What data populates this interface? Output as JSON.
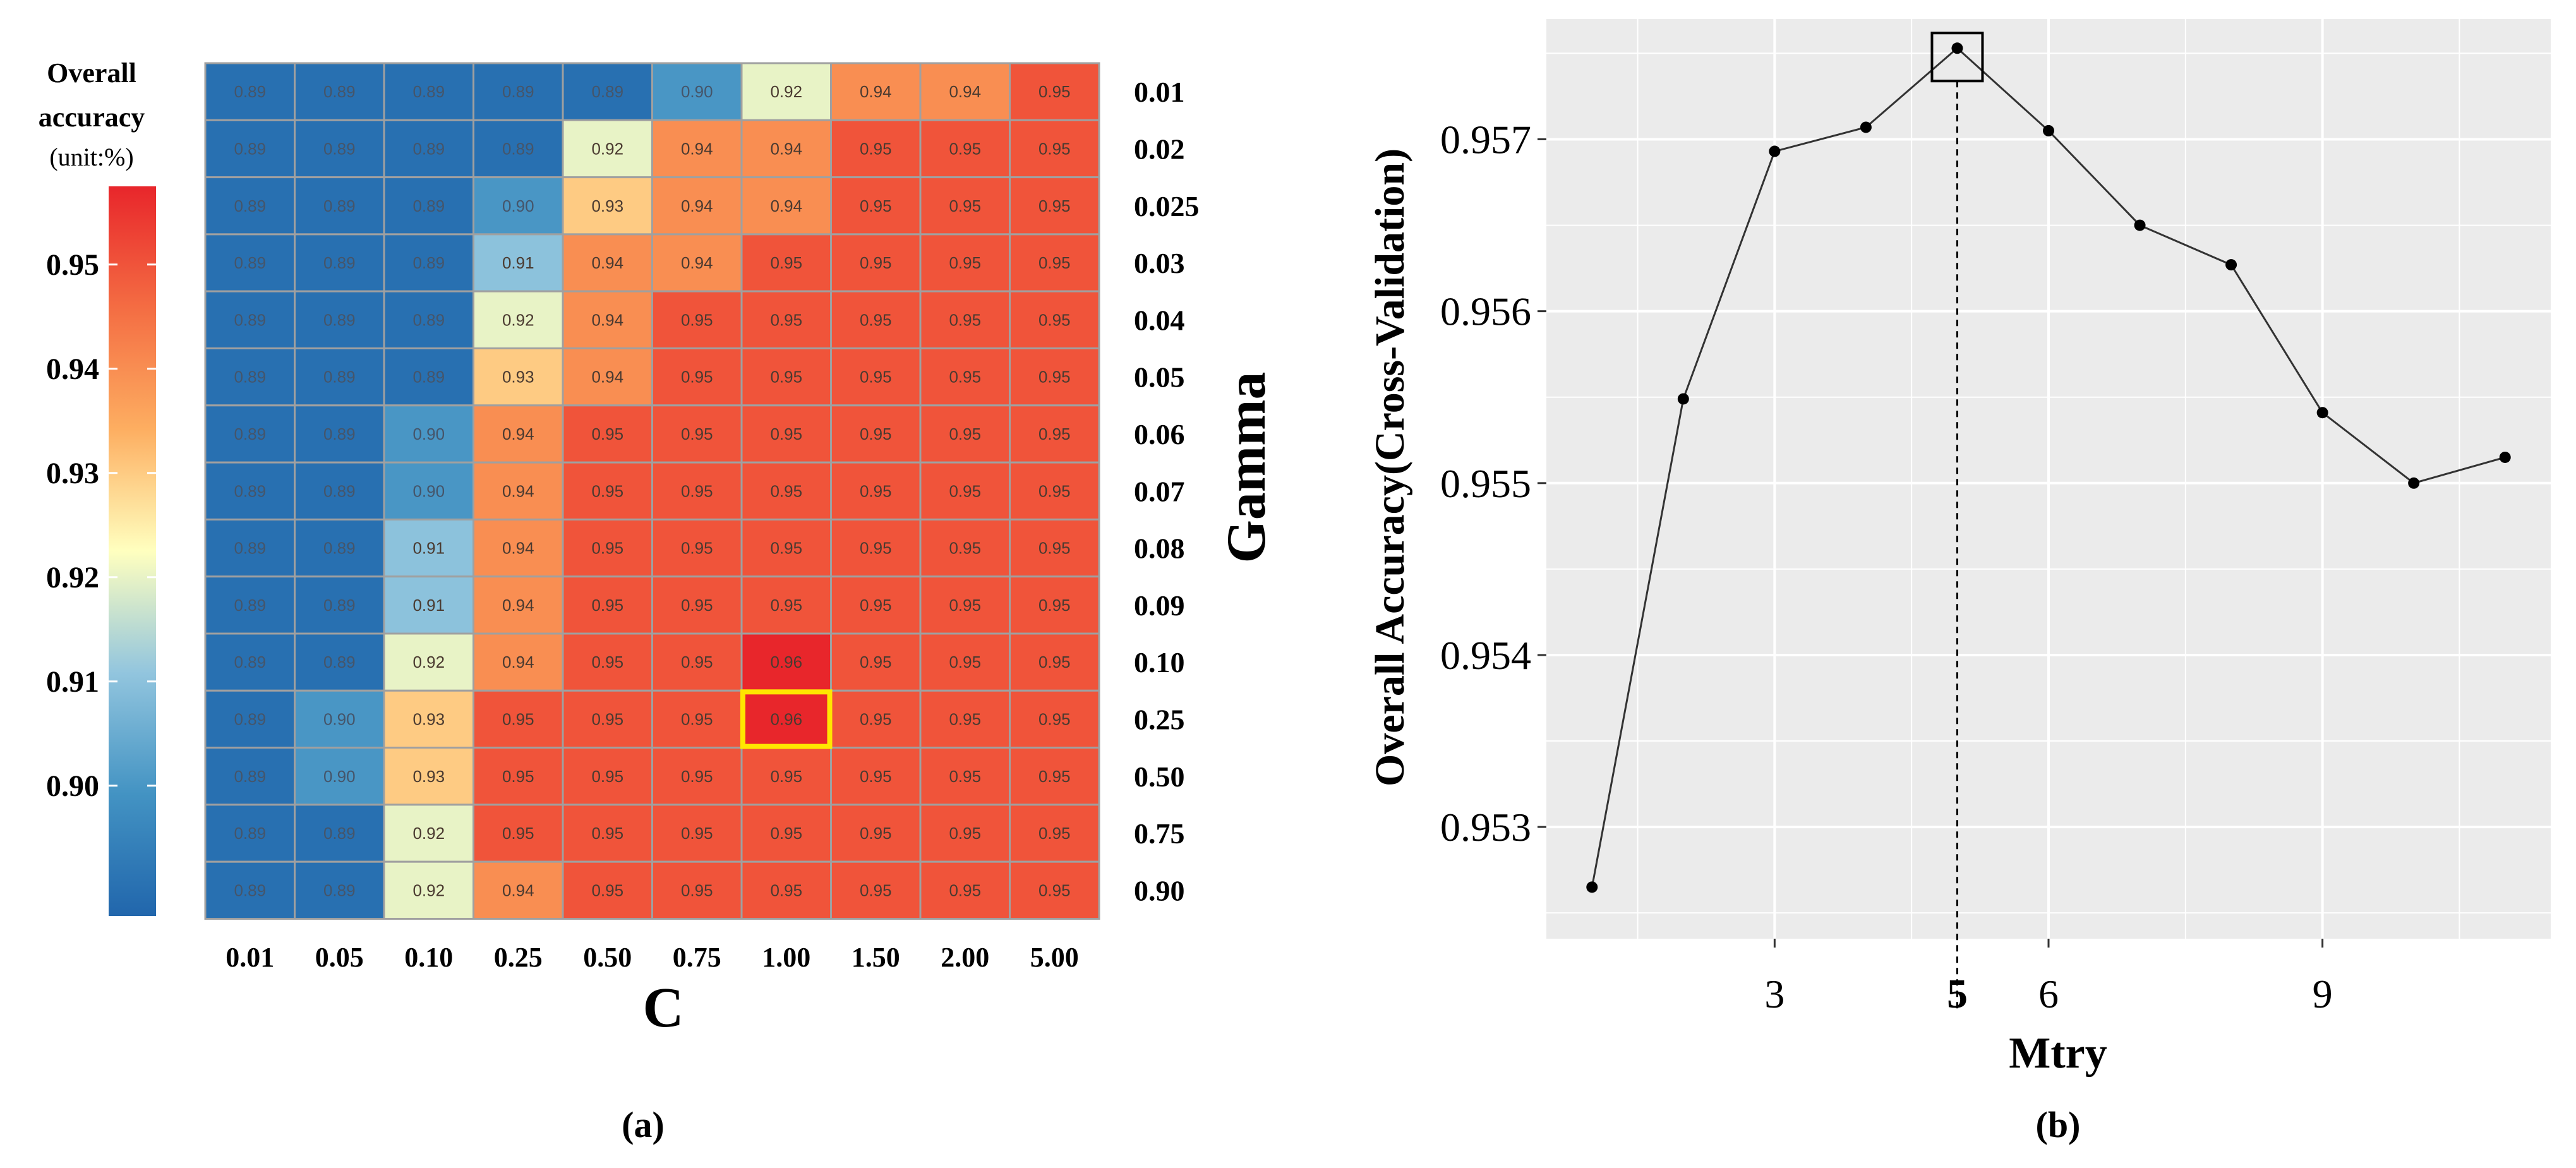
{
  "chart_data": [
    {
      "type": "heatmap",
      "panel_label": "(a)",
      "xlabel": "C",
      "ylabel": "Gamma",
      "x_categories": [
        "0.01",
        "0.05",
        "0.10",
        "0.25",
        "0.50",
        "0.75",
        "1.00",
        "1.50",
        "2.00",
        "5.00"
      ],
      "y_categories": [
        "0.01",
        "0.02",
        "0.025",
        "0.03",
        "0.04",
        "0.05",
        "0.06",
        "0.07",
        "0.08",
        "0.09",
        "0.10",
        "0.25",
        "0.50",
        "0.75",
        "0.90"
      ],
      "values": [
        [
          0.89,
          0.89,
          0.89,
          0.89,
          0.89,
          0.9,
          0.92,
          0.94,
          0.94,
          0.95
        ],
        [
          0.89,
          0.89,
          0.89,
          0.89,
          0.92,
          0.94,
          0.94,
          0.95,
          0.95,
          0.95
        ],
        [
          0.89,
          0.89,
          0.89,
          0.9,
          0.93,
          0.94,
          0.94,
          0.95,
          0.95,
          0.95
        ],
        [
          0.89,
          0.89,
          0.89,
          0.91,
          0.94,
          0.94,
          0.95,
          0.95,
          0.95,
          0.95
        ],
        [
          0.89,
          0.89,
          0.89,
          0.92,
          0.94,
          0.95,
          0.95,
          0.95,
          0.95,
          0.95
        ],
        [
          0.89,
          0.89,
          0.89,
          0.93,
          0.94,
          0.95,
          0.95,
          0.95,
          0.95,
          0.95
        ],
        [
          0.89,
          0.89,
          0.9,
          0.94,
          0.95,
          0.95,
          0.95,
          0.95,
          0.95,
          0.95
        ],
        [
          0.89,
          0.89,
          0.9,
          0.94,
          0.95,
          0.95,
          0.95,
          0.95,
          0.95,
          0.95
        ],
        [
          0.89,
          0.89,
          0.91,
          0.94,
          0.95,
          0.95,
          0.95,
          0.95,
          0.95,
          0.95
        ],
        [
          0.89,
          0.89,
          0.91,
          0.94,
          0.95,
          0.95,
          0.95,
          0.95,
          0.95,
          0.95
        ],
        [
          0.89,
          0.89,
          0.92,
          0.94,
          0.95,
          0.95,
          0.96,
          0.95,
          0.95,
          0.95
        ],
        [
          0.89,
          0.9,
          0.93,
          0.95,
          0.95,
          0.95,
          0.96,
          0.95,
          0.95,
          0.95
        ],
        [
          0.89,
          0.9,
          0.93,
          0.95,
          0.95,
          0.95,
          0.95,
          0.95,
          0.95,
          0.95
        ],
        [
          0.89,
          0.89,
          0.92,
          0.95,
          0.95,
          0.95,
          0.95,
          0.95,
          0.95,
          0.95
        ],
        [
          0.89,
          0.89,
          0.92,
          0.94,
          0.95,
          0.95,
          0.95,
          0.95,
          0.95,
          0.95
        ]
      ],
      "color_scale_values": [
        0.8875,
        0.8975,
        0.9075,
        0.9175,
        0.9275,
        0.9375,
        0.9475,
        0.9575
      ],
      "highlight": {
        "x": "1.00",
        "y": "0.25",
        "color": "#ffe600"
      },
      "colorbar": {
        "title_lines": [
          "Overall",
          "accuracy"
        ],
        "unit": "(unit:%)",
        "ticks": [
          "0.95",
          "0.94",
          "0.93",
          "0.92",
          "0.91",
          "0.90"
        ],
        "tick_values": [
          0.95,
          0.94,
          0.93,
          0.92,
          0.91,
          0.9
        ],
        "range": [
          0.8875,
          0.9575
        ]
      },
      "colors": {
        "low": "#2166ac",
        "mid": "#ffffbf",
        "high": "#e8262b",
        "grid": "#a0a0a0"
      }
    },
    {
      "type": "line",
      "panel_label": "(b)",
      "xlabel": "Mtry",
      "ylabel": "Overall Accuracy(Cross-Validation)",
      "x": [
        1,
        2,
        3,
        4,
        5,
        6,
        7,
        8,
        9,
        10,
        11
      ],
      "y": [
        0.95265,
        0.95549,
        0.95693,
        0.95707,
        0.95753,
        0.95705,
        0.9565,
        0.95627,
        0.95541,
        0.955,
        0.95515
      ],
      "xlim": [
        0.5,
        11.5
      ],
      "ylim": [
        0.95235,
        0.9577
      ],
      "x_ticks": [
        3,
        6,
        9
      ],
      "x_tick_labels": [
        "3",
        "6",
        "9"
      ],
      "x_minor_grid": [
        1.5,
        4.5,
        7.5,
        10.5
      ],
      "y_ticks": [
        0.953,
        0.954,
        0.955,
        0.956,
        0.957
      ],
      "y_tick_labels": [
        "0.953",
        "0.954",
        "0.955",
        "0.956",
        "0.957"
      ],
      "y_minor_grid": [
        0.9525,
        0.9535,
        0.9545,
        0.9555,
        0.9565,
        0.9575
      ],
      "optimum": {
        "x": 5,
        "label": "5"
      },
      "colors": {
        "panel": "#ebebeb",
        "grid": "#ffffff",
        "line": "#333333",
        "point": "#000000"
      }
    }
  ]
}
